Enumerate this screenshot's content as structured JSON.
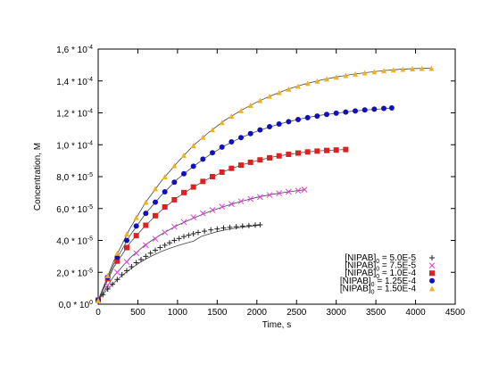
{
  "chart_data": {
    "type": "scatter",
    "xlabel": "Time, s",
    "ylabel": "Concentration, M",
    "xlim": [
      0,
      4500
    ],
    "ylim": [
      0,
      0.00016
    ],
    "x_ticks": [
      {
        "value": 0,
        "label": "0"
      },
      {
        "value": 500,
        "label": "500"
      },
      {
        "value": 1000,
        "label": "1000"
      },
      {
        "value": 1500,
        "label": "1500"
      },
      {
        "value": 2000,
        "label": "2000"
      },
      {
        "value": 2500,
        "label": "2500"
      },
      {
        "value": 3000,
        "label": "3000"
      },
      {
        "value": 3500,
        "label": "3500"
      },
      {
        "value": 4000,
        "label": "4000"
      },
      {
        "value": 4500,
        "label": "4500"
      }
    ],
    "y_ticks": [
      {
        "value": 0,
        "mantissa": "0,0",
        "exp": "0"
      },
      {
        "value": 2e-05,
        "mantissa": "2,0",
        "exp": "-5"
      },
      {
        "value": 4e-05,
        "mantissa": "4,0",
        "exp": "-5"
      },
      {
        "value": 6e-05,
        "mantissa": "6,0",
        "exp": "-5"
      },
      {
        "value": 8e-05,
        "mantissa": "8,0",
        "exp": "-5"
      },
      {
        "value": 0.0001,
        "mantissa": "1,0",
        "exp": "-4"
      },
      {
        "value": 0.00012,
        "mantissa": "1,2",
        "exp": "-4"
      },
      {
        "value": 0.00014,
        "mantissa": "1,4",
        "exp": "-4"
      },
      {
        "value": 0.00016,
        "mantissa": "1,6",
        "exp": "-4"
      }
    ],
    "grid": false,
    "legend_position": "bottom-right",
    "series": [
      {
        "base": "[NIPAB]",
        "sub": "0",
        "rest": " = 5.0E-5",
        "marker": "plus",
        "color": "#222222",
        "points": [
          [
            0,
            2.5e-06
          ],
          [
            60,
            6e-06
          ],
          [
            120,
            9.5e-06
          ],
          [
            180,
            1.25e-05
          ],
          [
            240,
            1.55e-05
          ],
          [
            300,
            1.85e-05
          ],
          [
            360,
            2.1e-05
          ],
          [
            420,
            2.35e-05
          ],
          [
            480,
            2.6e-05
          ],
          [
            540,
            2.8e-05
          ],
          [
            600,
            3e-05
          ],
          [
            660,
            3.2e-05
          ],
          [
            720,
            3.38e-05
          ],
          [
            780,
            3.55e-05
          ],
          [
            840,
            3.7e-05
          ],
          [
            900,
            3.85e-05
          ],
          [
            960,
            4e-05
          ],
          [
            1020,
            4.12e-05
          ],
          [
            1080,
            4.24e-05
          ],
          [
            1140,
            4.33e-05
          ],
          [
            1200,
            4.42e-05
          ],
          [
            1260,
            4.5e-05
          ],
          [
            1340,
            4.58e-05
          ],
          [
            1420,
            4.66e-05
          ],
          [
            1500,
            4.72e-05
          ],
          [
            1580,
            4.78e-05
          ],
          [
            1660,
            4.82e-05
          ],
          [
            1740,
            4.86e-05
          ],
          [
            1820,
            4.9e-05
          ],
          [
            1900,
            4.93e-05
          ],
          [
            1980,
            4.96e-05
          ],
          [
            2040,
            4.98e-05
          ]
        ],
        "fit": [
          [
            0,
            2.5e-06
          ],
          [
            100,
            8.4e-06
          ],
          [
            200,
            1.35e-05
          ],
          [
            300,
            1.8e-05
          ],
          [
            400,
            2.19e-05
          ],
          [
            500,
            2.53e-05
          ],
          [
            600,
            2.83e-05
          ],
          [
            700,
            3.08e-05
          ],
          [
            800,
            3.31e-05
          ],
          [
            900,
            3.5e-05
          ],
          [
            1000,
            3.67e-05
          ],
          [
            1100,
            3.82e-05
          ],
          [
            1200,
            3.95e-05
          ],
          [
            1300,
            4.25e-05
          ],
          [
            1400,
            4.41e-05
          ],
          [
            1500,
            4.55e-05
          ],
          [
            1600,
            4.66e-05
          ],
          [
            1700,
            4.75e-05
          ],
          [
            1800,
            4.82e-05
          ],
          [
            1900,
            4.88e-05
          ],
          [
            2000,
            4.93e-05
          ],
          [
            2040,
            4.95e-05
          ]
        ]
      },
      {
        "base": "[NIPAB]",
        "sub": "0",
        "rest": " = 7.5E-5",
        "marker": "x",
        "color": "#e040e0",
        "points": [
          [
            0,
            2.5e-06
          ],
          [
            120,
            1.2e-05
          ],
          [
            240,
            2e-05
          ],
          [
            360,
            2.65e-05
          ],
          [
            480,
            3.2e-05
          ],
          [
            600,
            3.7e-05
          ],
          [
            720,
            4.1e-05
          ],
          [
            840,
            4.5e-05
          ],
          [
            960,
            4.85e-05
          ],
          [
            1080,
            5.15e-05
          ],
          [
            1200,
            5.45e-05
          ],
          [
            1320,
            5.7e-05
          ],
          [
            1440,
            5.9e-05
          ],
          [
            1560,
            6.12e-05
          ],
          [
            1680,
            6.28e-05
          ],
          [
            1800,
            6.45e-05
          ],
          [
            1920,
            6.6e-05
          ],
          [
            2040,
            6.72e-05
          ],
          [
            2160,
            6.85e-05
          ],
          [
            2280,
            6.96e-05
          ],
          [
            2400,
            7.05e-05
          ],
          [
            2520,
            7.12e-05
          ],
          [
            2600,
            7.18e-05
          ]
        ],
        "fit": [
          [
            0,
            2.5e-06
          ],
          [
            200,
            1.78e-05
          ],
          [
            400,
            2.9e-05
          ],
          [
            600,
            3.75e-05
          ],
          [
            800,
            4.4e-05
          ],
          [
            1000,
            4.95e-05
          ],
          [
            1200,
            5.4e-05
          ],
          [
            1400,
            5.8e-05
          ],
          [
            1600,
            6.15e-05
          ],
          [
            1800,
            6.45e-05
          ],
          [
            2000,
            6.7e-05
          ],
          [
            2200,
            6.9e-05
          ],
          [
            2400,
            7.05e-05
          ],
          [
            2600,
            7.18e-05
          ]
        ]
      },
      {
        "base": "[NIPAB]",
        "sub": "0",
        "rest": " = 1.0E-4",
        "marker": "square",
        "color": "#e02020",
        "points": [
          [
            0,
            2.5e-06
          ],
          [
            120,
            1.6e-05
          ],
          [
            240,
            2.7e-05
          ],
          [
            360,
            3.55e-05
          ],
          [
            480,
            4.3e-05
          ],
          [
            600,
            4.95e-05
          ],
          [
            720,
            5.55e-05
          ],
          [
            840,
            6.1e-05
          ],
          [
            960,
            6.55e-05
          ],
          [
            1080,
            7e-05
          ],
          [
            1200,
            7.35e-05
          ],
          [
            1320,
            7.7e-05
          ],
          [
            1440,
            8e-05
          ],
          [
            1560,
            8.28e-05
          ],
          [
            1680,
            8.52e-05
          ],
          [
            1800,
            8.72e-05
          ],
          [
            1920,
            8.9e-05
          ],
          [
            2040,
            9.05e-05
          ],
          [
            2160,
            9.18e-05
          ],
          [
            2280,
            9.3e-05
          ],
          [
            2400,
            9.4e-05
          ],
          [
            2520,
            9.48e-05
          ],
          [
            2640,
            9.55e-05
          ],
          [
            2760,
            9.6e-05
          ],
          [
            2880,
            9.64e-05
          ],
          [
            3000,
            9.67e-05
          ],
          [
            3120,
            9.7e-05
          ]
        ],
        "fit": [
          [
            0,
            2.5e-06
          ],
          [
            200,
            2.35e-05
          ],
          [
            400,
            3.85e-05
          ],
          [
            600,
            4.95e-05
          ],
          [
            800,
            5.9e-05
          ],
          [
            1000,
            6.7e-05
          ],
          [
            1200,
            7.35e-05
          ],
          [
            1400,
            7.9e-05
          ],
          [
            1600,
            8.35e-05
          ],
          [
            1800,
            8.72e-05
          ],
          [
            2000,
            9e-05
          ],
          [
            2200,
            9.23e-05
          ],
          [
            2400,
            9.4e-05
          ],
          [
            2600,
            9.53e-05
          ],
          [
            2800,
            9.62e-05
          ],
          [
            3000,
            9.67e-05
          ],
          [
            3120,
            9.7e-05
          ]
        ]
      },
      {
        "base": "[NIPAB]",
        "sub": "0",
        "rest": " = 1.25E-4",
        "marker": "circle",
        "color": "#1010c0",
        "points": [
          [
            0,
            2.5e-06
          ],
          [
            120,
            1.7e-05
          ],
          [
            240,
            2.95e-05
          ],
          [
            360,
            4e-05
          ],
          [
            480,
            4.9e-05
          ],
          [
            600,
            5.7e-05
          ],
          [
            720,
            6.4e-05
          ],
          [
            840,
            7.05e-05
          ],
          [
            960,
            7.65e-05
          ],
          [
            1080,
            8.18e-05
          ],
          [
            1200,
            8.65e-05
          ],
          [
            1320,
            9.1e-05
          ],
          [
            1440,
            9.5e-05
          ],
          [
            1560,
            9.85e-05
          ],
          [
            1680,
            0.0001018
          ],
          [
            1800,
            0.0001045
          ],
          [
            1920,
            0.000107
          ],
          [
            2040,
            0.0001093
          ],
          [
            2160,
            0.0001113
          ],
          [
            2280,
            0.000113
          ],
          [
            2400,
            0.0001145
          ],
          [
            2520,
            0.0001158
          ],
          [
            2640,
            0.000117
          ],
          [
            2760,
            0.000118
          ],
          [
            2880,
            0.000119
          ],
          [
            3000,
            0.0001198
          ],
          [
            3120,
            0.0001205
          ],
          [
            3240,
            0.0001212
          ],
          [
            3360,
            0.0001218
          ],
          [
            3480,
            0.0001223
          ],
          [
            3600,
            0.0001228
          ],
          [
            3700,
            0.0001231
          ]
        ],
        "fit": [
          [
            0,
            2.5e-06
          ],
          [
            200,
            2.55e-05
          ],
          [
            400,
            4.3e-05
          ],
          [
            600,
            5.7e-05
          ],
          [
            800,
            6.85e-05
          ],
          [
            1000,
            7.85e-05
          ],
          [
            1200,
            8.65e-05
          ],
          [
            1400,
            9.35e-05
          ],
          [
            1600,
            9.95e-05
          ],
          [
            1800,
            0.0001045
          ],
          [
            2000,
            0.0001085
          ],
          [
            2200,
            0.0001118
          ],
          [
            2400,
            0.0001145
          ],
          [
            2600,
            0.0001167
          ],
          [
            2800,
            0.0001185
          ],
          [
            3000,
            0.0001198
          ],
          [
            3200,
            0.000121
          ],
          [
            3400,
            0.0001219
          ],
          [
            3600,
            0.0001226
          ],
          [
            3700,
            0.000123
          ]
        ]
      },
      {
        "base": "[NIPAB]",
        "sub": "0",
        "rest": " = 1.50E-4",
        "marker": "triangle",
        "color": "#f0b020",
        "points": [
          [
            0,
            2.5e-06
          ],
          [
            120,
            1.8e-05
          ],
          [
            240,
            3.2e-05
          ],
          [
            360,
            4.4e-05
          ],
          [
            480,
            5.45e-05
          ],
          [
            600,
            6.4e-05
          ],
          [
            720,
            7.25e-05
          ],
          [
            840,
            8e-05
          ],
          [
            960,
            8.7e-05
          ],
          [
            1080,
            9.35e-05
          ],
          [
            1200,
            9.95e-05
          ],
          [
            1320,
            0.0001048
          ],
          [
            1440,
            0.0001095
          ],
          [
            1560,
            0.000114
          ],
          [
            1680,
            0.000118
          ],
          [
            1800,
            0.0001215
          ],
          [
            1920,
            0.0001248
          ],
          [
            2040,
            0.0001278
          ],
          [
            2160,
            0.0001305
          ],
          [
            2280,
            0.0001328
          ],
          [
            2400,
            0.000135
          ],
          [
            2520,
            0.0001368
          ],
          [
            2640,
            0.0001385
          ],
          [
            2760,
            0.00014
          ],
          [
            2880,
            0.0001413
          ],
          [
            3000,
            0.0001425
          ],
          [
            3120,
            0.0001435
          ],
          [
            3240,
            0.0001444
          ],
          [
            3360,
            0.0001452
          ],
          [
            3480,
            0.0001459
          ],
          [
            3600,
            0.0001465
          ],
          [
            3720,
            0.000147
          ],
          [
            3840,
            0.0001474
          ],
          [
            3960,
            0.0001477
          ],
          [
            4080,
            0.0001479
          ],
          [
            4200,
            0.000148
          ]
        ],
        "fit": [
          [
            0,
            2.5e-06
          ],
          [
            200,
            2.75e-05
          ],
          [
            400,
            4.75e-05
          ],
          [
            600,
            6.4e-05
          ],
          [
            800,
            7.75e-05
          ],
          [
            1000,
            8.9e-05
          ],
          [
            1200,
            9.95e-05
          ],
          [
            1400,
            0.000108
          ],
          [
            1600,
            0.0001155
          ],
          [
            1800,
            0.0001215
          ],
          [
            2000,
            0.0001268
          ],
          [
            2200,
            0.0001312
          ],
          [
            2400,
            0.000135
          ],
          [
            2600,
            0.000138
          ],
          [
            2800,
            0.0001405
          ],
          [
            3000,
            0.0001425
          ],
          [
            3200,
            0.0001441
          ],
          [
            3400,
            0.0001454
          ],
          [
            3600,
            0.0001465
          ],
          [
            3800,
            0.0001473
          ],
          [
            4000,
            0.0001478
          ],
          [
            4200,
            0.000148
          ]
        ]
      }
    ]
  }
}
